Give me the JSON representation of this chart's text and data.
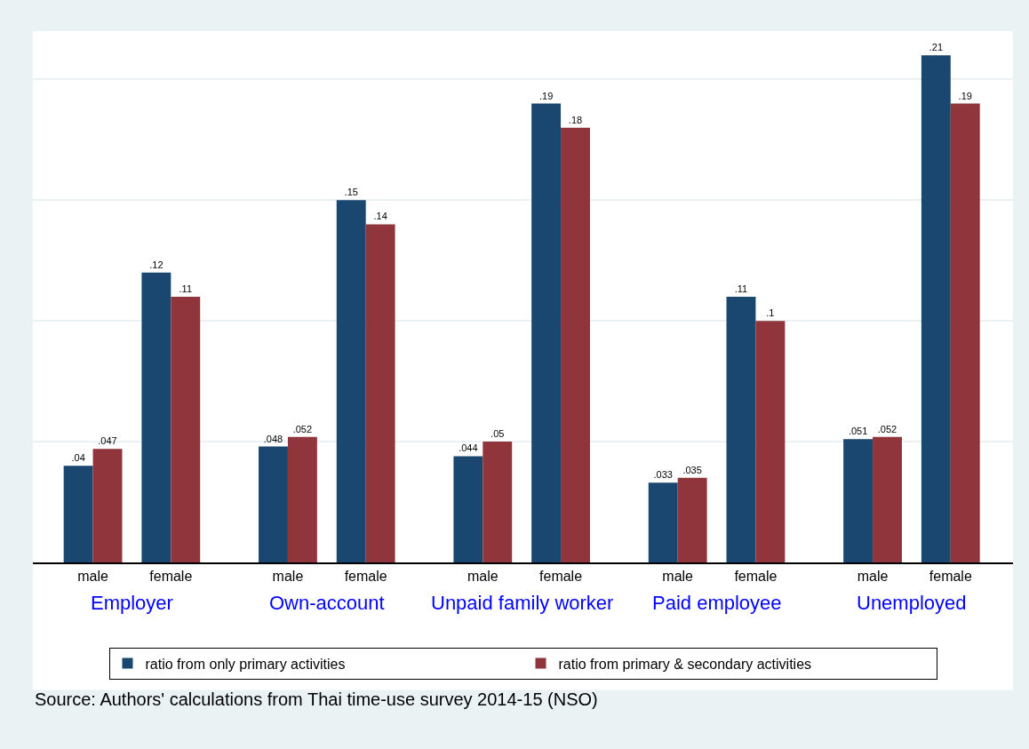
{
  "chart_data": {
    "type": "bar",
    "categories": [
      "male",
      "female",
      "male",
      "female",
      "male",
      "female",
      "male",
      "female",
      "male",
      "female"
    ],
    "series": [
      {
        "name": "ratio from only primary activities",
        "color": "#1a476f",
        "values": [
          0.04,
          0.12,
          0.048,
          0.15,
          0.044,
          0.19,
          0.033,
          0.11,
          0.051,
          0.21
        ],
        "value_labels": [
          ".04",
          ".12",
          ".048",
          ".15",
          ".044",
          ".19",
          ".033",
          ".11",
          ".051",
          ".21"
        ]
      },
      {
        "name": "ratio from primary & secondary activities",
        "color": "#90353b",
        "values": [
          0.047,
          0.11,
          0.052,
          0.14,
          0.05,
          0.18,
          0.035,
          0.1,
          0.052,
          0.19
        ],
        "value_labels": [
          ".047",
          ".11",
          ".052",
          ".14",
          ".05",
          ".18",
          ".035",
          ".1",
          ".052",
          ".19"
        ]
      }
    ],
    "annotations": [
      "Employer",
      "Own-account",
      "Unpaid family worker",
      "Paid employee",
      "Unemployed",
      "Source: Authors' calculations from Thai time-use survey 2014-15 (NSO)"
    ],
    "ylim": [
      0,
      0.22
    ],
    "yticks": [
      {
        "value": 0.05,
        "label": null
      },
      {
        "value": 0.1,
        "label": null
      },
      {
        "value": 0.15,
        "label": null
      },
      {
        "value": 0.2,
        "label": null
      }
    ],
    "tick_labels": "x",
    "grid": "y",
    "legend": "bottom"
  }
}
